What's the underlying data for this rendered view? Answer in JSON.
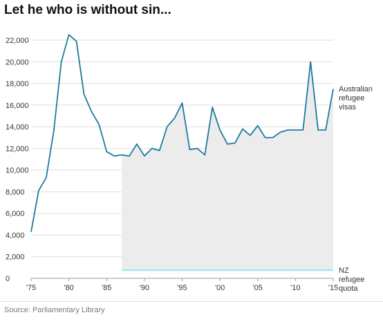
{
  "title": "Let he who is without sin...",
  "source": "Source: Parliamentary Library",
  "colors": {
    "au_line": "#1b7a9e",
    "nz_line": "#8fe3f2",
    "fill": "#ececec",
    "grid": "#dddddd",
    "text": "#333333"
  },
  "chart_data": {
    "type": "line",
    "title": "Let he who is without sin...",
    "xlabel": "",
    "ylabel": "",
    "xlim": [
      1975,
      2015
    ],
    "ylim": [
      0,
      22000
    ],
    "grid": true,
    "y_ticks": [
      0,
      2000,
      4000,
      6000,
      8000,
      10000,
      12000,
      14000,
      16000,
      18000,
      20000,
      22000
    ],
    "y_tick_labels": [
      "0",
      "2,000",
      "4,000",
      "6,000",
      "8,000",
      "10,000",
      "12,000",
      "14,000",
      "16,000",
      "18,000",
      "20,000",
      "22,000"
    ],
    "x_ticks": [
      1975,
      1980,
      1985,
      1990,
      1995,
      2000,
      2005,
      2010,
      2015
    ],
    "x_tick_labels": [
      "'75",
      "'80",
      "'85",
      "'90",
      "'95",
      "'00",
      "'05",
      "'10",
      "'15"
    ],
    "series": [
      {
        "name": "Australian refugee visas",
        "label_lines": [
          "Australian",
          "refugee",
          "visas"
        ],
        "x": [
          1975,
          1976,
          1977,
          1978,
          1979,
          1980,
          1981,
          1982,
          1983,
          1984,
          1985,
          1986,
          1987,
          1988,
          1989,
          1990,
          1991,
          1992,
          1993,
          1994,
          1995,
          1996,
          1997,
          1998,
          1999,
          2000,
          2001,
          2002,
          2003,
          2004,
          2005,
          2006,
          2007,
          2008,
          2009,
          2010,
          2011,
          2012,
          2013,
          2014,
          2015
        ],
        "values": [
          4300,
          8100,
          9300,
          13600,
          20000,
          22500,
          21900,
          17000,
          15400,
          14200,
          11700,
          11300,
          11400,
          11300,
          12400,
          11300,
          12000,
          11800,
          14000,
          14800,
          16200,
          11900,
          12000,
          11400,
          15800,
          13700,
          12400,
          12500,
          13800,
          13200,
          14100,
          13000,
          13000,
          13500,
          13700,
          13700,
          13700,
          20000,
          13700,
          13700,
          17500
        ]
      },
      {
        "name": "NZ refugee quota",
        "label_lines": [
          "NZ",
          "refugee",
          "quota"
        ],
        "x": [
          1987,
          2015
        ],
        "values": [
          750,
          750
        ]
      }
    ],
    "shaded_region": {
      "x_from": 1987,
      "x_to": 2015
    }
  }
}
